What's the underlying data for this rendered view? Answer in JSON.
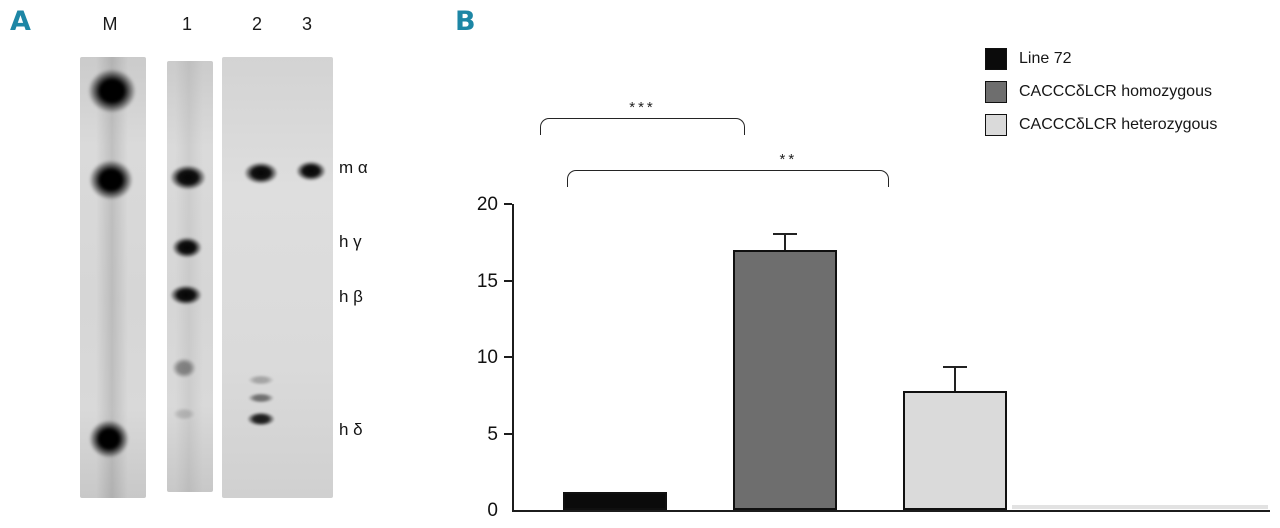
{
  "panelA": {
    "label": "A",
    "lane_labels": [
      "M",
      "1",
      "2",
      "3"
    ],
    "band_labels": [
      "m α",
      "h γ",
      "h β",
      "h δ"
    ]
  },
  "panelB": {
    "label": "B",
    "legend": [
      {
        "label": "Line 72",
        "color": "#0b0b0b"
      },
      {
        "label": "CACCCδLCR homozygous",
        "color": "#6e6e6e"
      },
      {
        "label": "CACCCδLCR heterozygous",
        "color": "#dadada"
      }
    ]
  },
  "chart_data": {
    "type": "bar",
    "categories": [
      "Line 72",
      "CACCCδLCR homozygous",
      "CACCCδLCR heterozygous"
    ],
    "values": [
      1.2,
      17.0,
      7.8
    ],
    "errors_plus": [
      0,
      1.1,
      1.6
    ],
    "bar_colors": [
      "#0b0b0b",
      "#6e6e6e",
      "#dadada"
    ],
    "title": "",
    "xlabel": "",
    "ylabel": "",
    "ylim": [
      0,
      20
    ],
    "yticks": [
      0,
      5,
      10,
      15,
      20
    ],
    "grid": false,
    "legend_position": "top-right",
    "significance": [
      {
        "between": [
          "Line 72",
          "CACCCδLCR homozygous"
        ],
        "label": "***"
      },
      {
        "between": [
          "Line 72",
          "CACCCδLCR heterozygous"
        ],
        "label": "**"
      }
    ]
  },
  "accent_color": "#1d86a5"
}
